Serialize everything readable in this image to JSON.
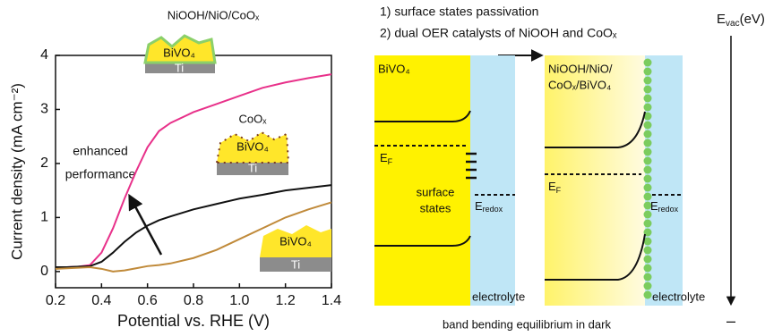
{
  "chart_data": {
    "type": "line",
    "x_label": "Potential vs. RHE (V)",
    "y_label": "Current density (mA cm⁻²)",
    "x": [
      0.2,
      0.25,
      0.3,
      0.35,
      0.4,
      0.45,
      0.5,
      0.55,
      0.6,
      0.65,
      0.7,
      0.8,
      0.9,
      1.0,
      1.1,
      1.2,
      1.3,
      1.4
    ],
    "series": [
      {
        "color": "#e8318a",
        "values": [
          0.08,
          0.08,
          0.09,
          0.12,
          0.35,
          0.8,
          1.35,
          1.85,
          2.3,
          2.6,
          2.75,
          2.95,
          3.1,
          3.25,
          3.4,
          3.5,
          3.58,
          3.65
        ]
      },
      {
        "color": "#111111",
        "values": [
          0.08,
          0.08,
          0.09,
          0.1,
          0.18,
          0.35,
          0.55,
          0.72,
          0.85,
          0.95,
          1.02,
          1.15,
          1.25,
          1.35,
          1.42,
          1.5,
          1.55,
          1.6
        ]
      },
      {
        "color": "#c08a3a",
        "values": [
          0.05,
          0.06,
          0.07,
          0.08,
          0.05,
          0.0,
          0.02,
          0.06,
          0.1,
          0.12,
          0.15,
          0.25,
          0.4,
          0.6,
          0.8,
          1.0,
          1.15,
          1.28
        ]
      }
    ],
    "xlim": [
      0.2,
      1.4
    ],
    "xticks": [
      0.2,
      0.4,
      0.6,
      0.8,
      {
        "value": 1,
        "label": "1.0"
      },
      1.2,
      1.4
    ],
    "ylim": [
      -0.3,
      4
    ],
    "yticks": [
      0,
      1,
      2,
      3,
      4
    ],
    "annotation": [
      "enhanced",
      "performance"
    ],
    "insets": [
      {
        "coating": "NiOOH/NiO/CoOₓ",
        "layer": "BiVO₄",
        "substrate": "Ti"
      },
      {
        "coating": "CoOₓ",
        "layer": "BiVO₄",
        "substrate": "Ti"
      },
      {
        "layer": "BiVO₄",
        "substrate": "Ti"
      }
    ]
  },
  "diagram": {
    "steps": [
      "1) surface states passivation",
      "2) dual OER catalysts of NiOOH and CoOₓ"
    ],
    "vacuum_level": {
      "symbol": "E",
      "subscript": "vac",
      "unit": "(eV)"
    },
    "bottom_sign": "–",
    "caption": "band bending equilibrium in dark",
    "left_panel": {
      "material": "BiVO₄",
      "fermi": {
        "symbol": "E",
        "subscript": "F"
      },
      "surface_states": [
        "surface",
        "states"
      ],
      "redox": {
        "symbol": "E",
        "subscript": "redox"
      },
      "electrolyte": "electrolyte"
    },
    "right_panel": {
      "material": [
        "NiOOH/NiO/",
        "CoOₓ/BiVO₄"
      ],
      "fermi": {
        "symbol": "E",
        "subscript": "F"
      },
      "redox": {
        "symbol": "E",
        "subscript": "redox"
      },
      "electrolyte": "electrolyte"
    }
  }
}
